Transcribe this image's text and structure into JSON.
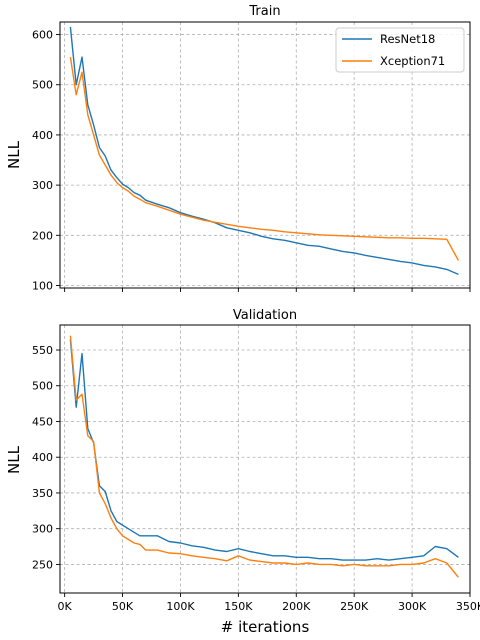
{
  "chart_data": [
    {
      "type": "line",
      "title": "Train",
      "ylabel": "NLL",
      "xlabel": "",
      "xlim": [
        -4000,
        350000
      ],
      "ylim": [
        95,
        625
      ],
      "xticks": [
        0,
        50000,
        100000,
        150000,
        200000,
        250000,
        300000,
        350000
      ],
      "yticks": [
        100,
        200,
        300,
        400,
        500,
        600
      ],
      "ytick_labels": [
        "100",
        "200",
        "300",
        "400",
        "500",
        "600"
      ],
      "grid": true,
      "legend": "upper right",
      "series": [
        {
          "name": "ResNet18",
          "color": "#1f77b4",
          "x": [
            5000,
            10000,
            15000,
            20000,
            25000,
            30000,
            35000,
            40000,
            45000,
            50000,
            55000,
            60000,
            65000,
            70000,
            80000,
            90000,
            100000,
            110000,
            120000,
            130000,
            140000,
            150000,
            160000,
            170000,
            180000,
            190000,
            200000,
            210000,
            220000,
            230000,
            240000,
            250000,
            260000,
            270000,
            280000,
            290000,
            300000,
            310000,
            320000,
            330000,
            340000
          ],
          "y": [
            615,
            500,
            555,
            460,
            420,
            375,
            358,
            330,
            315,
            302,
            295,
            285,
            280,
            270,
            262,
            255,
            245,
            238,
            232,
            225,
            215,
            210,
            205,
            198,
            193,
            190,
            185,
            180,
            178,
            173,
            168,
            165,
            160,
            156,
            152,
            148,
            145,
            140,
            137,
            132,
            122
          ]
        },
        {
          "name": "Xception71",
          "color": "#ff7f0e",
          "x": [
            5000,
            10000,
            15000,
            20000,
            25000,
            30000,
            35000,
            40000,
            45000,
            50000,
            55000,
            60000,
            65000,
            70000,
            80000,
            90000,
            100000,
            110000,
            120000,
            130000,
            140000,
            150000,
            160000,
            170000,
            180000,
            190000,
            200000,
            210000,
            220000,
            230000,
            240000,
            250000,
            260000,
            270000,
            280000,
            290000,
            300000,
            310000,
            320000,
            330000,
            340000
          ],
          "y": [
            555,
            480,
            525,
            440,
            400,
            360,
            340,
            320,
            305,
            295,
            288,
            278,
            272,
            265,
            258,
            250,
            242,
            236,
            230,
            226,
            222,
            218,
            215,
            212,
            210,
            207,
            205,
            203,
            201,
            200,
            199,
            198,
            197,
            196,
            195,
            195,
            194,
            194,
            193,
            192,
            150
          ]
        }
      ]
    },
    {
      "type": "line",
      "title": "Validation",
      "ylabel": "NLL",
      "xlabel": "# iterations",
      "xlim": [
        -4000,
        350000
      ],
      "ylim": [
        210,
        585
      ],
      "xticks": [
        0,
        50000,
        100000,
        150000,
        200000,
        250000,
        300000,
        350000
      ],
      "xtick_labels": [
        "0K",
        "50K",
        "100K",
        "150K",
        "200K",
        "250K",
        "300K",
        "350K"
      ],
      "yticks": [
        250,
        300,
        350,
        400,
        450,
        500,
        550
      ],
      "ytick_labels": [
        "250",
        "300",
        "350",
        "400",
        "450",
        "500",
        "550"
      ],
      "grid": true,
      "series": [
        {
          "name": "ResNet18",
          "color": "#1f77b4",
          "x": [
            5000,
            10000,
            15000,
            20000,
            25000,
            30000,
            35000,
            40000,
            45000,
            50000,
            55000,
            60000,
            65000,
            70000,
            80000,
            90000,
            100000,
            110000,
            120000,
            130000,
            140000,
            150000,
            160000,
            170000,
            180000,
            190000,
            200000,
            210000,
            220000,
            230000,
            240000,
            250000,
            260000,
            270000,
            280000,
            290000,
            300000,
            310000,
            320000,
            330000,
            340000
          ],
          "y": [
            565,
            470,
            545,
            440,
            420,
            360,
            352,
            325,
            310,
            305,
            300,
            295,
            290,
            290,
            290,
            282,
            280,
            276,
            274,
            270,
            268,
            272,
            268,
            265,
            262,
            262,
            260,
            260,
            258,
            258,
            256,
            256,
            256,
            258,
            256,
            258,
            260,
            262,
            275,
            272,
            260
          ]
        },
        {
          "name": "Xception71",
          "color": "#ff7f0e",
          "x": [
            5000,
            10000,
            15000,
            20000,
            25000,
            30000,
            35000,
            40000,
            45000,
            50000,
            55000,
            60000,
            65000,
            70000,
            80000,
            90000,
            100000,
            110000,
            120000,
            130000,
            140000,
            150000,
            160000,
            170000,
            180000,
            190000,
            200000,
            210000,
            220000,
            230000,
            240000,
            250000,
            260000,
            270000,
            280000,
            290000,
            300000,
            310000,
            320000,
            330000,
            340000
          ],
          "y": [
            570,
            480,
            488,
            430,
            422,
            350,
            335,
            315,
            300,
            290,
            285,
            280,
            278,
            270,
            270,
            266,
            265,
            262,
            260,
            258,
            255,
            262,
            256,
            254,
            252,
            252,
            250,
            252,
            250,
            250,
            248,
            250,
            248,
            248,
            248,
            250,
            250,
            252,
            258,
            252,
            232
          ]
        }
      ]
    }
  ]
}
